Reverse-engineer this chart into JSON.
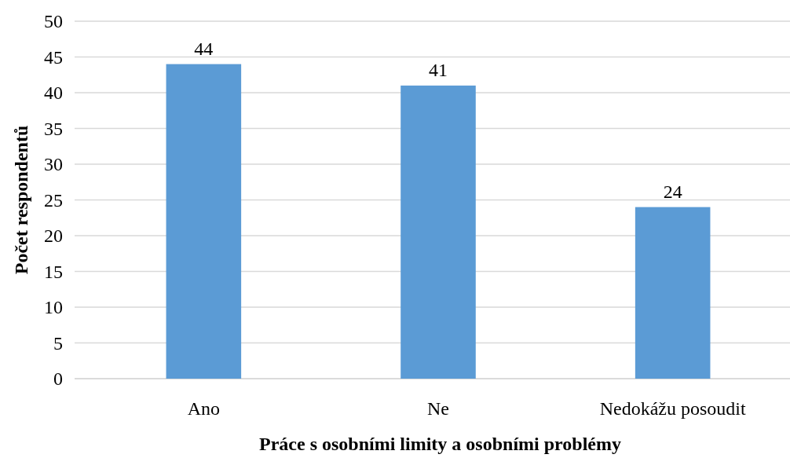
{
  "chart_data": {
    "type": "bar",
    "xlabel": "Práce s osobními limity a osobními problémy",
    "ylabel": "Počet respondentů",
    "categories": [
      "Ano",
      "Ne",
      "Nedokážu posoudit"
    ],
    "values": [
      44,
      41,
      24
    ],
    "color": "#5b9bd5",
    "ylim": [
      0,
      50
    ],
    "yticks": [
      0,
      5,
      10,
      15,
      20,
      25,
      30,
      35,
      40,
      45,
      50
    ],
    "grid": "y",
    "data_labels": true
  }
}
